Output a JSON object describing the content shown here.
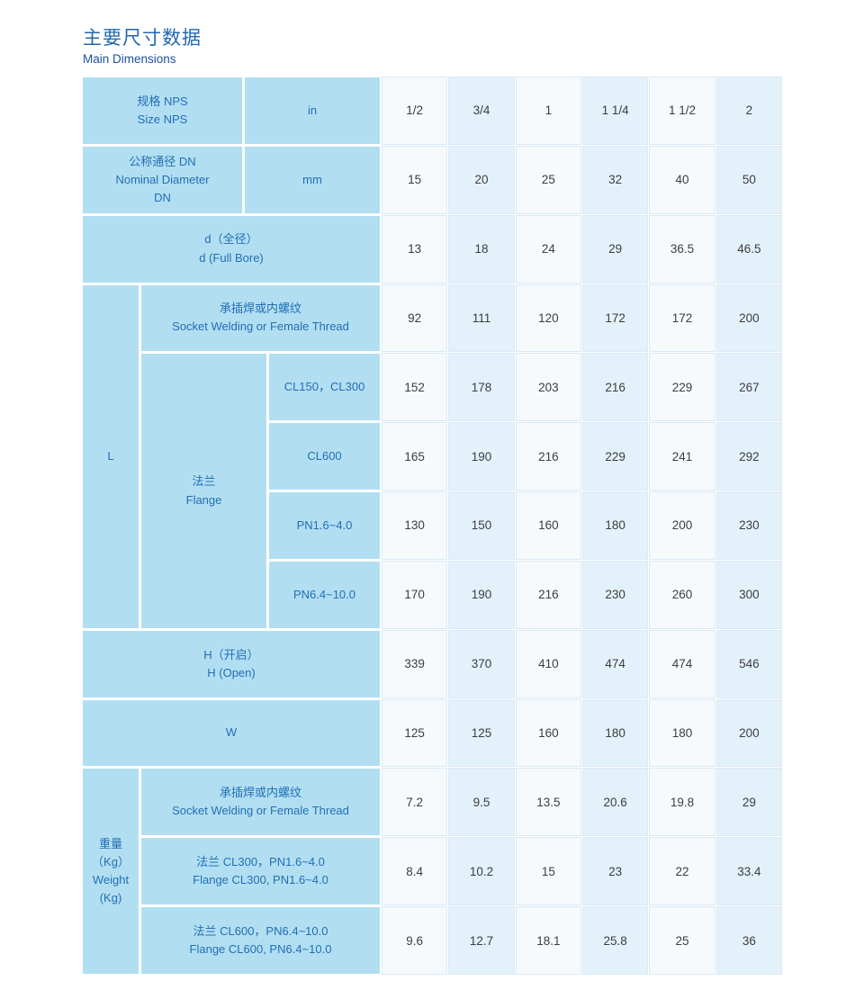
{
  "title": {
    "cn": "主要尺寸数据",
    "en": "Main Dimensions"
  },
  "colors": {
    "header_bg": "#b2def2",
    "data_col_light": "#f6fafd",
    "data_col_tint": "#e3f1fa",
    "header_text": "#2270b4",
    "title_cn": "#2268b0",
    "title_en": "#1d4f9f",
    "data_text": "#3d3d3d"
  },
  "headers": {
    "nps_cn": "规格 NPS",
    "nps_en": "Size NPS",
    "nps_unit": "in",
    "dn_cn": "公称通径 DN",
    "dn_en1": "Nominal Diameter",
    "dn_en2": "DN",
    "dn_unit": "mm",
    "d_cn": "d（全径）",
    "d_en": "d (Full Bore)",
    "l_label": "L",
    "l_socket_cn": "承插焊或内螺纹",
    "l_socket_en": "Socket Welding or Female Thread",
    "flange_cn": "法兰",
    "flange_en": "Flange",
    "cl150": "CL150，CL300",
    "cl600": "CL600",
    "pn16": "PN1.6~4.0",
    "pn64": "PN6.4~10.0",
    "h_cn": "H（开启）",
    "h_en": "H (Open)",
    "w_label": "W",
    "weight_cn": "重量",
    "weight_kg_cn": "（Kg）",
    "weight_en": "Weight",
    "weight_kg_en": "(Kg)",
    "wt_socket_cn": "承插焊或内螺纹",
    "wt_socket_en": "Socket Welding or Female Thread",
    "wt_cl300_cn": "法兰 CL300，PN1.6~4.0",
    "wt_cl300_en": "Flange CL300, PN1.6~4.0",
    "wt_cl600_cn": "法兰 CL600，PN6.4~10.0",
    "wt_cl600_en": "Flange CL600, PN6.4~10.0"
  },
  "values": {
    "nps": [
      "1/2",
      "3/4",
      "1",
      "1 1/4",
      "1 1/2",
      "2"
    ],
    "dn": [
      "15",
      "20",
      "25",
      "32",
      "40",
      "50"
    ],
    "d": [
      "13",
      "18",
      "24",
      "29",
      "36.5",
      "46.5"
    ],
    "l_socket": [
      "92",
      "111",
      "120",
      "172",
      "172",
      "200"
    ],
    "l_cl150": [
      "152",
      "178",
      "203",
      "216",
      "229",
      "267"
    ],
    "l_cl600": [
      "165",
      "190",
      "216",
      "229",
      "241",
      "292"
    ],
    "l_pn16": [
      "130",
      "150",
      "160",
      "180",
      "200",
      "230"
    ],
    "l_pn64": [
      "170",
      "190",
      "216",
      "230",
      "260",
      "300"
    ],
    "h": [
      "339",
      "370",
      "410",
      "474",
      "474",
      "546"
    ],
    "w": [
      "125",
      "125",
      "160",
      "180",
      "180",
      "200"
    ],
    "wt_socket": [
      "7.2",
      "9.5",
      "13.5",
      "20.6",
      "19.8",
      "29"
    ],
    "wt_cl300": [
      "8.4",
      "10.2",
      "15",
      "23",
      "22",
      "33.4"
    ],
    "wt_cl600": [
      "9.6",
      "12.7",
      "18.1",
      "25.8",
      "25",
      "36"
    ]
  }
}
